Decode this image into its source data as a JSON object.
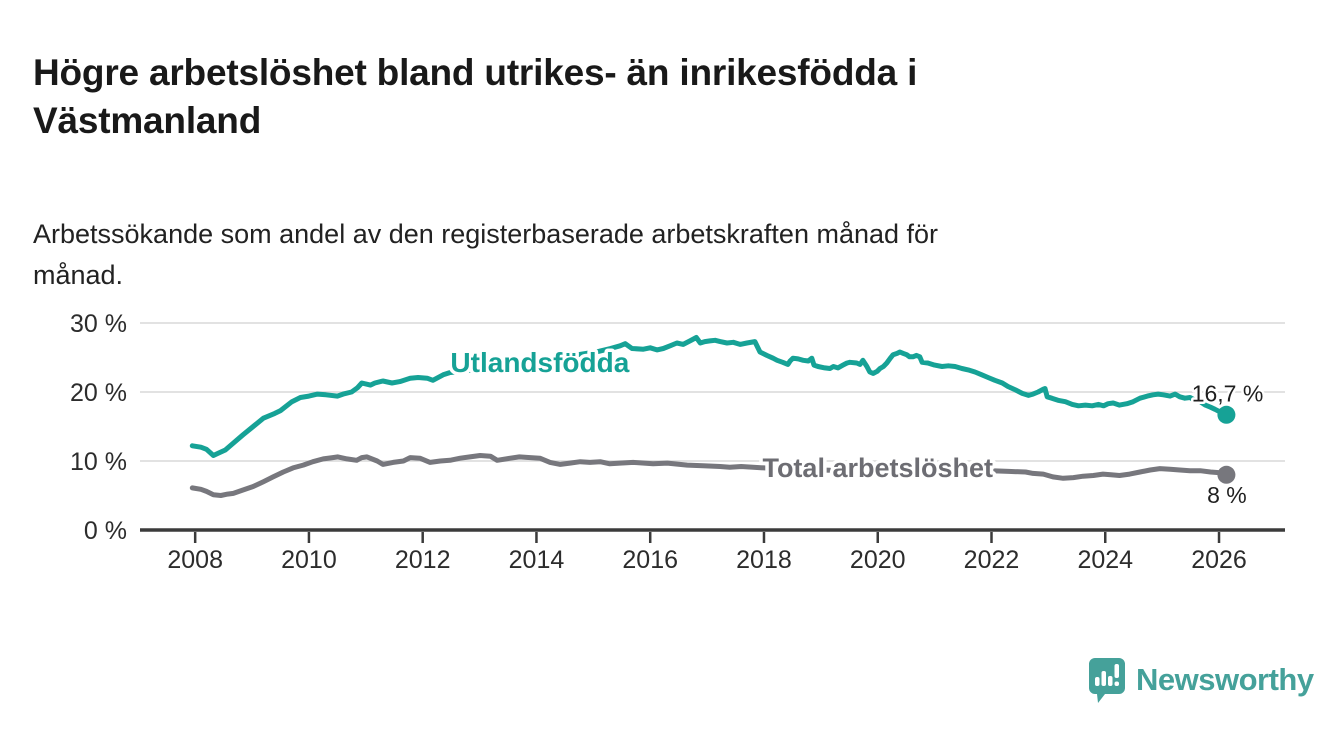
{
  "header": {
    "title_line1": "Högre arbetslöshet bland utrikes- än inrikesfödda i",
    "title_line2": "Västmanland",
    "subtitle_line1": "Arbetssökande som andel av den registerbaserade arbetskraften månad för",
    "subtitle_line2": "månad."
  },
  "footer": {
    "brand": "Newsworthy"
  },
  "colors": {
    "accent_teal": "#16a296",
    "series_gray": "#77777d",
    "gray_label": "#6d6d73",
    "grid": "#d9d9d9",
    "axis": "#3b3b3b",
    "tick_text": "#2c2c2c",
    "annotation_text": "#1f1f1f",
    "logo_teal": "#45a19a"
  },
  "chart_data": {
    "type": "line",
    "title": "Högre arbetslöshet bland utrikes- än inrikesfödda i Västmanland",
    "subtitle": "Arbetssökande som andel av den registerbaserade arbetskraften månad för månad.",
    "xlabel": "",
    "ylabel": "",
    "xlim": [
      2007.03,
      2027.16
    ],
    "ylim": [
      0,
      30
    ],
    "grid": "horizontal",
    "legend_position": "inline-labels",
    "x_ticks": [
      2008,
      2010,
      2012,
      2014,
      2016,
      2018,
      2020,
      2022,
      2024,
      2026
    ],
    "y_ticks": [
      0,
      10,
      20,
      30
    ],
    "y_tick_suffix": " %",
    "series": [
      {
        "name": "Utlandsfödda",
        "color": "#16a296",
        "label_color": "#16a296",
        "label_at": [
          2014.06,
          22.9
        ],
        "end_label": "16,7 %",
        "end_label_at": [
          2025.52,
          18.6
        ],
        "end_value": 16.7,
        "points": [
          [
            2007.95,
            12.2
          ],
          [
            2008.1,
            12.0
          ],
          [
            2008.2,
            11.7
          ],
          [
            2008.32,
            10.8
          ],
          [
            2008.4,
            11.1
          ],
          [
            2008.53,
            11.6
          ],
          [
            2008.67,
            12.6
          ],
          [
            2008.84,
            13.8
          ],
          [
            2009.02,
            15.0
          ],
          [
            2009.2,
            16.2
          ],
          [
            2009.4,
            16.9
          ],
          [
            2009.5,
            17.3
          ],
          [
            2009.7,
            18.6
          ],
          [
            2009.85,
            19.2
          ],
          [
            2010.0,
            19.4
          ],
          [
            2010.15,
            19.7
          ],
          [
            2010.3,
            19.6
          ],
          [
            2010.5,
            19.4
          ],
          [
            2010.6,
            19.7
          ],
          [
            2010.75,
            20.0
          ],
          [
            2010.85,
            20.6
          ],
          [
            2010.93,
            21.3
          ],
          [
            2011.08,
            21.0
          ],
          [
            2011.16,
            21.3
          ],
          [
            2011.3,
            21.6
          ],
          [
            2011.46,
            21.3
          ],
          [
            2011.6,
            21.5
          ],
          [
            2011.78,
            22.0
          ],
          [
            2011.92,
            22.1
          ],
          [
            2012.08,
            22.0
          ],
          [
            2012.18,
            21.7
          ],
          [
            2012.36,
            22.5
          ],
          [
            2012.47,
            22.8
          ],
          [
            2012.7,
            23.0
          ],
          [
            2013.0,
            23.3
          ],
          [
            2013.3,
            23.6
          ],
          [
            2013.6,
            24.0
          ],
          [
            2013.9,
            24.4
          ],
          [
            2014.2,
            24.7
          ],
          [
            2014.5,
            25.1
          ],
          [
            2014.8,
            25.5
          ],
          [
            2015.1,
            25.9
          ],
          [
            2015.3,
            26.3
          ],
          [
            2015.47,
            26.7
          ],
          [
            2015.56,
            27.0
          ],
          [
            2015.68,
            26.3
          ],
          [
            2015.88,
            26.2
          ],
          [
            2016.0,
            26.4
          ],
          [
            2016.12,
            26.1
          ],
          [
            2016.23,
            26.3
          ],
          [
            2016.35,
            26.7
          ],
          [
            2016.47,
            27.1
          ],
          [
            2016.58,
            26.9
          ],
          [
            2016.7,
            27.4
          ],
          [
            2016.81,
            27.9
          ],
          [
            2016.88,
            27.1
          ],
          [
            2016.96,
            27.3
          ],
          [
            2017.05,
            27.4
          ],
          [
            2017.14,
            27.5
          ],
          [
            2017.23,
            27.3
          ],
          [
            2017.35,
            27.1
          ],
          [
            2017.46,
            27.2
          ],
          [
            2017.58,
            26.9
          ],
          [
            2017.7,
            27.1
          ],
          [
            2017.84,
            27.3
          ],
          [
            2017.93,
            25.8
          ],
          [
            2018.05,
            25.3
          ],
          [
            2018.16,
            24.9
          ],
          [
            2018.23,
            24.6
          ],
          [
            2018.33,
            24.3
          ],
          [
            2018.42,
            24.0
          ],
          [
            2018.46,
            24.5
          ],
          [
            2018.51,
            24.9
          ],
          [
            2018.6,
            24.8
          ],
          [
            2018.69,
            24.6
          ],
          [
            2018.78,
            24.5
          ],
          [
            2018.84,
            24.9
          ],
          [
            2018.88,
            23.9
          ],
          [
            2018.95,
            23.7
          ],
          [
            2019.07,
            23.5
          ],
          [
            2019.16,
            23.4
          ],
          [
            2019.22,
            23.7
          ],
          [
            2019.3,
            23.5
          ],
          [
            2019.39,
            23.9
          ],
          [
            2019.46,
            24.2
          ],
          [
            2019.51,
            24.3
          ],
          [
            2019.63,
            24.2
          ],
          [
            2019.69,
            24.0
          ],
          [
            2019.74,
            24.6
          ],
          [
            2019.81,
            23.7
          ],
          [
            2019.86,
            22.9
          ],
          [
            2019.92,
            22.7
          ],
          [
            2019.99,
            23.0
          ],
          [
            2020.04,
            23.4
          ],
          [
            2020.1,
            23.7
          ],
          [
            2020.16,
            24.2
          ],
          [
            2020.22,
            24.9
          ],
          [
            2020.27,
            25.4
          ],
          [
            2020.34,
            25.6
          ],
          [
            2020.39,
            25.8
          ],
          [
            2020.45,
            25.6
          ],
          [
            2020.51,
            25.4
          ],
          [
            2020.56,
            25.1
          ],
          [
            2020.62,
            25.1
          ],
          [
            2020.68,
            25.3
          ],
          [
            2020.74,
            25.1
          ],
          [
            2020.78,
            24.3
          ],
          [
            2020.88,
            24.2
          ],
          [
            2021.0,
            23.9
          ],
          [
            2021.13,
            23.7
          ],
          [
            2021.24,
            23.8
          ],
          [
            2021.36,
            23.7
          ],
          [
            2021.48,
            23.4
          ],
          [
            2021.59,
            23.2
          ],
          [
            2021.71,
            22.9
          ],
          [
            2021.83,
            22.5
          ],
          [
            2021.94,
            22.1
          ],
          [
            2022.06,
            21.7
          ],
          [
            2022.19,
            21.3
          ],
          [
            2022.29,
            20.8
          ],
          [
            2022.42,
            20.3
          ],
          [
            2022.54,
            19.8
          ],
          [
            2022.65,
            19.5
          ],
          [
            2022.73,
            19.7
          ],
          [
            2022.82,
            20.0
          ],
          [
            2022.91,
            20.4
          ],
          [
            2022.94,
            20.5
          ],
          [
            2022.98,
            19.3
          ],
          [
            2023.06,
            19.1
          ],
          [
            2023.17,
            18.8
          ],
          [
            2023.3,
            18.6
          ],
          [
            2023.42,
            18.2
          ],
          [
            2023.53,
            18.0
          ],
          [
            2023.65,
            18.1
          ],
          [
            2023.77,
            18.0
          ],
          [
            2023.88,
            18.2
          ],
          [
            2023.97,
            18.0
          ],
          [
            2024.05,
            18.3
          ],
          [
            2024.14,
            18.4
          ],
          [
            2024.25,
            18.1
          ],
          [
            2024.38,
            18.3
          ],
          [
            2024.49,
            18.6
          ],
          [
            2024.61,
            19.1
          ],
          [
            2024.74,
            19.4
          ],
          [
            2024.84,
            19.6
          ],
          [
            2024.93,
            19.7
          ],
          [
            2025.02,
            19.6
          ],
          [
            2025.14,
            19.4
          ],
          [
            2025.23,
            19.7
          ],
          [
            2025.31,
            19.3
          ],
          [
            2025.4,
            19.1
          ],
          [
            2025.49,
            19.2
          ],
          [
            2025.58,
            18.8
          ],
          [
            2025.67,
            18.6
          ],
          [
            2025.76,
            18.1
          ],
          [
            2025.85,
            17.8
          ],
          [
            2025.93,
            17.5
          ],
          [
            2026.02,
            17.1
          ],
          [
            2026.13,
            16.7
          ]
        ]
      },
      {
        "name": "Total arbetslöshet",
        "color": "#77777d",
        "label_color": "#6d6d73",
        "label_at": [
          2020.0,
          7.7
        ],
        "end_label": "8 %",
        "end_label_at": [
          2025.79,
          3.9
        ],
        "end_value": 8.0,
        "points": [
          [
            2007.95,
            6.1
          ],
          [
            2008.1,
            5.9
          ],
          [
            2008.2,
            5.6
          ],
          [
            2008.32,
            5.1
          ],
          [
            2008.45,
            5.0
          ],
          [
            2008.57,
            5.2
          ],
          [
            2008.67,
            5.3
          ],
          [
            2008.84,
            5.8
          ],
          [
            2009.02,
            6.3
          ],
          [
            2009.2,
            7.0
          ],
          [
            2009.37,
            7.7
          ],
          [
            2009.55,
            8.4
          ],
          [
            2009.72,
            9.0
          ],
          [
            2009.9,
            9.4
          ],
          [
            2010.07,
            9.9
          ],
          [
            2010.25,
            10.3
          ],
          [
            2010.42,
            10.5
          ],
          [
            2010.51,
            10.6
          ],
          [
            2010.67,
            10.3
          ],
          [
            2010.84,
            10.1
          ],
          [
            2010.93,
            10.5
          ],
          [
            2011.02,
            10.6
          ],
          [
            2011.2,
            10.0
          ],
          [
            2011.3,
            9.5
          ],
          [
            2011.48,
            9.8
          ],
          [
            2011.66,
            10.0
          ],
          [
            2011.78,
            10.5
          ],
          [
            2011.95,
            10.4
          ],
          [
            2012.13,
            9.8
          ],
          [
            2012.31,
            10.0
          ],
          [
            2012.48,
            10.1
          ],
          [
            2012.66,
            10.4
          ],
          [
            2012.83,
            10.6
          ],
          [
            2013.01,
            10.8
          ],
          [
            2013.19,
            10.7
          ],
          [
            2013.31,
            10.1
          ],
          [
            2013.54,
            10.4
          ],
          [
            2013.7,
            10.6
          ],
          [
            2013.89,
            10.5
          ],
          [
            2014.06,
            10.4
          ],
          [
            2014.24,
            9.8
          ],
          [
            2014.42,
            9.5
          ],
          [
            2014.59,
            9.7
          ],
          [
            2014.77,
            9.9
          ],
          [
            2014.94,
            9.8
          ],
          [
            2015.12,
            9.9
          ],
          [
            2015.29,
            9.6
          ],
          [
            2015.47,
            9.7
          ],
          [
            2015.7,
            9.8
          ],
          [
            2016.05,
            9.6
          ],
          [
            2016.3,
            9.7
          ],
          [
            2016.52,
            9.5
          ],
          [
            2016.65,
            9.4
          ],
          [
            2016.93,
            9.3
          ],
          [
            2017.23,
            9.2
          ],
          [
            2017.4,
            9.1
          ],
          [
            2017.6,
            9.2
          ],
          [
            2018.0,
            9.0
          ],
          [
            2018.5,
            8.8
          ],
          [
            2019.0,
            8.7
          ],
          [
            2019.5,
            8.6
          ],
          [
            2020.0,
            8.7
          ],
          [
            2020.4,
            9.3
          ],
          [
            2020.8,
            9.2
          ],
          [
            2021.2,
            9.0
          ],
          [
            2021.6,
            8.8
          ],
          [
            2022.0,
            8.6
          ],
          [
            2022.3,
            8.5
          ],
          [
            2022.6,
            8.4
          ],
          [
            2022.73,
            8.2
          ],
          [
            2022.91,
            8.1
          ],
          [
            2023.08,
            7.7
          ],
          [
            2023.26,
            7.5
          ],
          [
            2023.44,
            7.6
          ],
          [
            2023.61,
            7.8
          ],
          [
            2023.79,
            7.9
          ],
          [
            2023.96,
            8.1
          ],
          [
            2024.1,
            8.0
          ],
          [
            2024.25,
            7.9
          ],
          [
            2024.43,
            8.1
          ],
          [
            2024.61,
            8.4
          ],
          [
            2024.79,
            8.7
          ],
          [
            2024.96,
            8.9
          ],
          [
            2025.14,
            8.8
          ],
          [
            2025.31,
            8.7
          ],
          [
            2025.49,
            8.6
          ],
          [
            2025.67,
            8.6
          ],
          [
            2025.85,
            8.4
          ],
          [
            2026.02,
            8.3
          ],
          [
            2026.13,
            8.0
          ]
        ]
      }
    ]
  }
}
